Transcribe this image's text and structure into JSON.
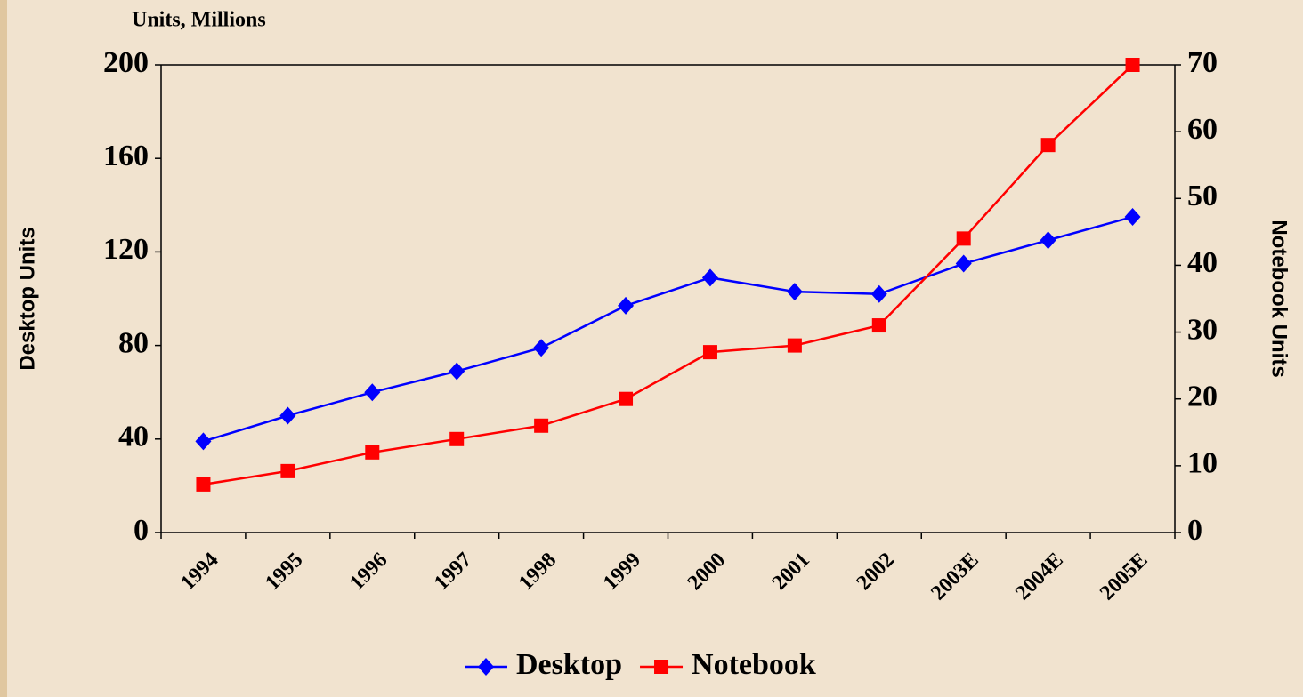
{
  "chart_data": {
    "type": "line",
    "subtitle": "Units, Millions",
    "y_label": "Desktop Units",
    "y2_label": "Notebook Units",
    "categories": [
      "1994",
      "1995",
      "1996",
      "1997",
      "1998",
      "1999",
      "2000",
      "2001",
      "2002",
      "2003E",
      "2004E",
      "2005E"
    ],
    "series": [
      {
        "name": "Desktop",
        "color": "#0000ff",
        "marker": "diamond",
        "values": [
          39,
          50,
          60,
          69,
          79,
          97,
          109,
          103,
          102,
          115,
          125,
          135
        ]
      },
      {
        "name": "Notebook",
        "color": "#ff0000",
        "marker": "square",
        "axis": "y2",
        "values": [
          7.2,
          9.2,
          12,
          14,
          16,
          20,
          27,
          28,
          31,
          44,
          58,
          70
        ]
      }
    ],
    "ylim": [
      0,
      200
    ],
    "yticks": [
      0,
      40,
      80,
      120,
      160,
      200
    ],
    "y2lim": [
      0,
      70
    ],
    "y2ticks": [
      0,
      10,
      20,
      30,
      40,
      50,
      60,
      70
    ],
    "legend": "bottom",
    "grid": false
  }
}
